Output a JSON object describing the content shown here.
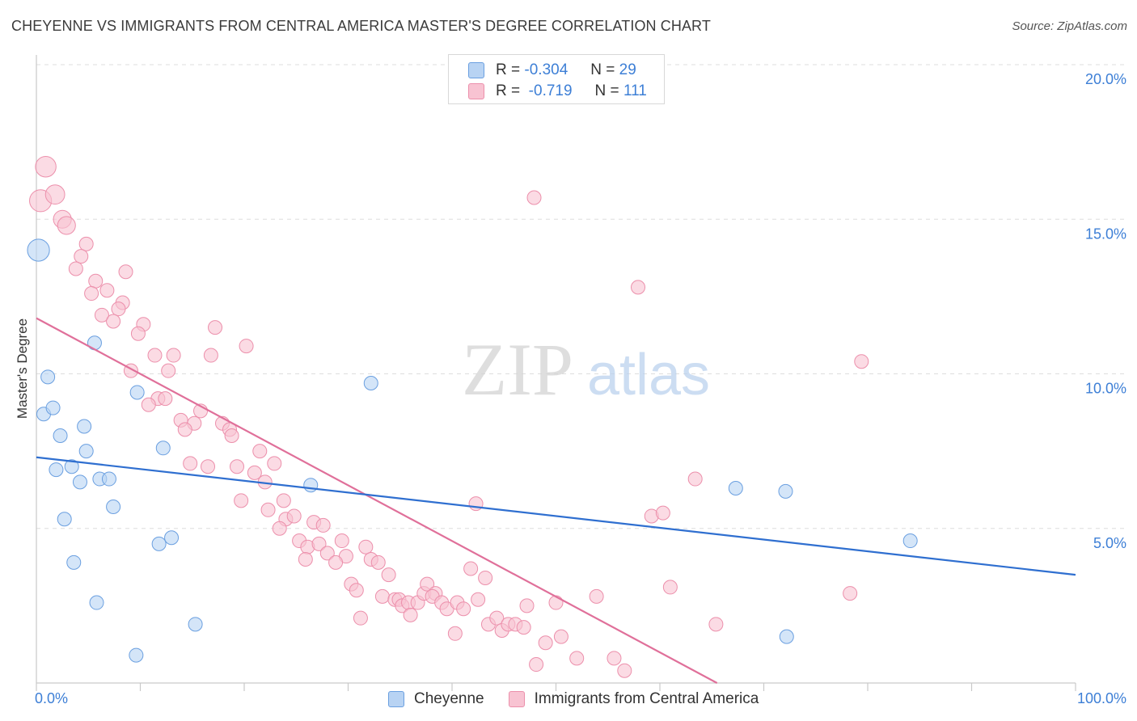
{
  "header": {
    "title": "CHEYENNE VS IMMIGRANTS FROM CENTRAL AMERICA MASTER'S DEGREE CORRELATION CHART",
    "source": "Source: ZipAtlas.com"
  },
  "watermark": {
    "zip": "ZIP",
    "atlas": "atlas"
  },
  "legend": {
    "rows": [
      {
        "r_label": "R =",
        "r_value": "-0.304",
        "n_label": "N =",
        "n_value": "29"
      },
      {
        "r_label": "R =",
        "r_value": "-0.719",
        "n_label": "N =",
        "n_value": "111"
      }
    ]
  },
  "bottom_legend": {
    "series1": "Cheyenne",
    "series2": "Immigrants from Central America"
  },
  "colors": {
    "blue_fill": "#b8d3f3",
    "blue_stroke": "#6a9fe0",
    "blue_line": "#2f6fd0",
    "pink_fill": "#f8c3d2",
    "pink_stroke": "#ec8fab",
    "pink_line": "#e0709a",
    "tick_text": "#3d7fd6",
    "grid": "#dddddd"
  },
  "chart_data": {
    "type": "scatter",
    "title": "CHEYENNE VS IMMIGRANTS FROM CENTRAL AMERICA MASTER'S DEGREE CORRELATION CHART",
    "xlabel": "",
    "ylabel": "Master's Degree",
    "xlim": [
      0,
      100
    ],
    "ylim": [
      0,
      20
    ],
    "x_tick_labels": [
      "0.0%",
      "100.0%"
    ],
    "y_ticks": [
      5,
      10,
      15,
      20
    ],
    "y_tick_labels": [
      "5.0%",
      "10.0%",
      "15.0%",
      "20.0%"
    ],
    "grid": true,
    "series": [
      {
        "name": "Cheyenne",
        "r": -0.304,
        "n": 29,
        "trend": {
          "x": [
            0,
            100
          ],
          "y": [
            7.3,
            3.5
          ]
        },
        "points": [
          {
            "x": 0.2,
            "y": 14.0,
            "s": 1.6
          },
          {
            "x": 0.7,
            "y": 8.7,
            "s": 1
          },
          {
            "x": 1.1,
            "y": 9.9,
            "s": 1
          },
          {
            "x": 1.6,
            "y": 8.9,
            "s": 1
          },
          {
            "x": 1.9,
            "y": 6.9,
            "s": 1
          },
          {
            "x": 2.3,
            "y": 8.0,
            "s": 1
          },
          {
            "x": 2.7,
            "y": 5.3,
            "s": 1
          },
          {
            "x": 3.4,
            "y": 7.0,
            "s": 1
          },
          {
            "x": 3.6,
            "y": 3.9,
            "s": 1
          },
          {
            "x": 4.2,
            "y": 6.5,
            "s": 1
          },
          {
            "x": 4.6,
            "y": 8.3,
            "s": 1
          },
          {
            "x": 4.8,
            "y": 7.5,
            "s": 1
          },
          {
            "x": 5.6,
            "y": 11.0,
            "s": 1
          },
          {
            "x": 5.8,
            "y": 2.6,
            "s": 1
          },
          {
            "x": 6.1,
            "y": 6.6,
            "s": 1
          },
          {
            "x": 7.0,
            "y": 6.6,
            "s": 1
          },
          {
            "x": 7.4,
            "y": 5.7,
            "s": 1
          },
          {
            "x": 9.6,
            "y": 0.9,
            "s": 1
          },
          {
            "x": 9.7,
            "y": 9.4,
            "s": 1
          },
          {
            "x": 11.8,
            "y": 4.5,
            "s": 1
          },
          {
            "x": 12.2,
            "y": 7.6,
            "s": 1
          },
          {
            "x": 13.0,
            "y": 4.7,
            "s": 1
          },
          {
            "x": 15.3,
            "y": 1.9,
            "s": 1
          },
          {
            "x": 26.4,
            "y": 6.4,
            "s": 1
          },
          {
            "x": 32.2,
            "y": 9.7,
            "s": 1
          },
          {
            "x": 67.3,
            "y": 6.3,
            "s": 1
          },
          {
            "x": 72.1,
            "y": 6.2,
            "s": 1
          },
          {
            "x": 84.1,
            "y": 4.6,
            "s": 1
          },
          {
            "x": 72.2,
            "y": 1.5,
            "s": 1
          }
        ]
      },
      {
        "name": "Immigrants from Central America",
        "r": -0.719,
        "n": 111,
        "trend": {
          "x": [
            0,
            65.5
          ],
          "y": [
            11.8,
            0
          ]
        },
        "points": [
          {
            "x": 0.4,
            "y": 15.6,
            "s": 1.6
          },
          {
            "x": 0.9,
            "y": 16.7,
            "s": 1.5
          },
          {
            "x": 1.8,
            "y": 15.8,
            "s": 1.4
          },
          {
            "x": 2.5,
            "y": 15.0,
            "s": 1.3
          },
          {
            "x": 2.9,
            "y": 14.8,
            "s": 1.3
          },
          {
            "x": 4.8,
            "y": 14.2,
            "s": 1
          },
          {
            "x": 4.3,
            "y": 13.8,
            "s": 1
          },
          {
            "x": 3.8,
            "y": 13.4,
            "s": 1
          },
          {
            "x": 5.7,
            "y": 13.0,
            "s": 1
          },
          {
            "x": 6.8,
            "y": 12.7,
            "s": 1
          },
          {
            "x": 5.3,
            "y": 12.6,
            "s": 1
          },
          {
            "x": 8.6,
            "y": 13.3,
            "s": 1
          },
          {
            "x": 8.3,
            "y": 12.3,
            "s": 1
          },
          {
            "x": 7.9,
            "y": 12.1,
            "s": 1
          },
          {
            "x": 6.3,
            "y": 11.9,
            "s": 1
          },
          {
            "x": 7.4,
            "y": 11.7,
            "s": 1
          },
          {
            "x": 10.3,
            "y": 11.6,
            "s": 1
          },
          {
            "x": 9.8,
            "y": 11.3,
            "s": 1
          },
          {
            "x": 17.2,
            "y": 11.5,
            "s": 1
          },
          {
            "x": 20.2,
            "y": 10.9,
            "s": 1
          },
          {
            "x": 11.4,
            "y": 10.6,
            "s": 1
          },
          {
            "x": 13.2,
            "y": 10.6,
            "s": 1
          },
          {
            "x": 16.8,
            "y": 10.6,
            "s": 1
          },
          {
            "x": 9.1,
            "y": 10.1,
            "s": 1
          },
          {
            "x": 12.7,
            "y": 10.1,
            "s": 1
          },
          {
            "x": 11.7,
            "y": 9.2,
            "s": 1
          },
          {
            "x": 12.4,
            "y": 9.2,
            "s": 1
          },
          {
            "x": 10.8,
            "y": 9.0,
            "s": 1
          },
          {
            "x": 15.8,
            "y": 8.8,
            "s": 1
          },
          {
            "x": 13.9,
            "y": 8.5,
            "s": 1
          },
          {
            "x": 15.2,
            "y": 8.4,
            "s": 1
          },
          {
            "x": 14.3,
            "y": 8.2,
            "s": 1
          },
          {
            "x": 17.9,
            "y": 8.4,
            "s": 1
          },
          {
            "x": 18.6,
            "y": 8.2,
            "s": 1
          },
          {
            "x": 18.8,
            "y": 8.0,
            "s": 1
          },
          {
            "x": 21.5,
            "y": 7.5,
            "s": 1
          },
          {
            "x": 14.8,
            "y": 7.1,
            "s": 1
          },
          {
            "x": 16.5,
            "y": 7.0,
            "s": 1
          },
          {
            "x": 19.3,
            "y": 7.0,
            "s": 1
          },
          {
            "x": 21.0,
            "y": 6.8,
            "s": 1
          },
          {
            "x": 22.9,
            "y": 7.1,
            "s": 1
          },
          {
            "x": 22.0,
            "y": 6.5,
            "s": 1
          },
          {
            "x": 19.7,
            "y": 5.9,
            "s": 1
          },
          {
            "x": 22.3,
            "y": 5.6,
            "s": 1
          },
          {
            "x": 23.8,
            "y": 5.9,
            "s": 1
          },
          {
            "x": 24.0,
            "y": 5.3,
            "s": 1
          },
          {
            "x": 24.8,
            "y": 5.4,
            "s": 1
          },
          {
            "x": 23.4,
            "y": 5.0,
            "s": 1
          },
          {
            "x": 26.7,
            "y": 5.2,
            "s": 1
          },
          {
            "x": 27.6,
            "y": 5.1,
            "s": 1
          },
          {
            "x": 25.3,
            "y": 4.6,
            "s": 1
          },
          {
            "x": 26.1,
            "y": 4.4,
            "s": 1
          },
          {
            "x": 27.2,
            "y": 4.5,
            "s": 1
          },
          {
            "x": 29.4,
            "y": 4.6,
            "s": 1
          },
          {
            "x": 31.7,
            "y": 4.4,
            "s": 1
          },
          {
            "x": 25.9,
            "y": 4.0,
            "s": 1
          },
          {
            "x": 28.0,
            "y": 4.2,
            "s": 1
          },
          {
            "x": 29.8,
            "y": 4.1,
            "s": 1
          },
          {
            "x": 28.8,
            "y": 3.9,
            "s": 1
          },
          {
            "x": 32.2,
            "y": 4.0,
            "s": 1
          },
          {
            "x": 32.9,
            "y": 3.9,
            "s": 1
          },
          {
            "x": 30.3,
            "y": 3.2,
            "s": 1
          },
          {
            "x": 30.8,
            "y": 3.0,
            "s": 1
          },
          {
            "x": 33.9,
            "y": 3.5,
            "s": 1
          },
          {
            "x": 33.3,
            "y": 2.8,
            "s": 1
          },
          {
            "x": 34.5,
            "y": 2.7,
            "s": 1
          },
          {
            "x": 34.9,
            "y": 2.7,
            "s": 1
          },
          {
            "x": 35.2,
            "y": 2.5,
            "s": 1
          },
          {
            "x": 35.8,
            "y": 2.6,
            "s": 1
          },
          {
            "x": 36.7,
            "y": 2.6,
            "s": 1
          },
          {
            "x": 37.3,
            "y": 2.9,
            "s": 1
          },
          {
            "x": 37.6,
            "y": 3.2,
            "s": 1
          },
          {
            "x": 38.4,
            "y": 2.9,
            "s": 1
          },
          {
            "x": 38.1,
            "y": 2.8,
            "s": 1
          },
          {
            "x": 39.0,
            "y": 2.6,
            "s": 1
          },
          {
            "x": 39.5,
            "y": 2.4,
            "s": 1
          },
          {
            "x": 40.5,
            "y": 2.6,
            "s": 1
          },
          {
            "x": 41.1,
            "y": 2.4,
            "s": 1
          },
          {
            "x": 41.8,
            "y": 3.7,
            "s": 1
          },
          {
            "x": 42.5,
            "y": 2.7,
            "s": 1
          },
          {
            "x": 43.2,
            "y": 3.4,
            "s": 1
          },
          {
            "x": 36.0,
            "y": 2.2,
            "s": 1
          },
          {
            "x": 31.2,
            "y": 2.1,
            "s": 1
          },
          {
            "x": 43.5,
            "y": 1.9,
            "s": 1
          },
          {
            "x": 44.3,
            "y": 2.1,
            "s": 1
          },
          {
            "x": 44.8,
            "y": 1.7,
            "s": 1
          },
          {
            "x": 45.4,
            "y": 1.9,
            "s": 1
          },
          {
            "x": 46.1,
            "y": 1.9,
            "s": 1
          },
          {
            "x": 46.9,
            "y": 1.8,
            "s": 1
          },
          {
            "x": 47.2,
            "y": 2.5,
            "s": 1
          },
          {
            "x": 50.0,
            "y": 2.6,
            "s": 1
          },
          {
            "x": 40.3,
            "y": 1.6,
            "s": 1
          },
          {
            "x": 49.0,
            "y": 1.3,
            "s": 1
          },
          {
            "x": 50.5,
            "y": 1.5,
            "s": 1
          },
          {
            "x": 53.9,
            "y": 2.8,
            "s": 1
          },
          {
            "x": 48.1,
            "y": 0.6,
            "s": 1
          },
          {
            "x": 52.0,
            "y": 0.8,
            "s": 1
          },
          {
            "x": 55.6,
            "y": 0.8,
            "s": 1
          },
          {
            "x": 56.6,
            "y": 0.4,
            "s": 1
          },
          {
            "x": 42.3,
            "y": 5.8,
            "s": 1
          },
          {
            "x": 59.2,
            "y": 5.4,
            "s": 1
          },
          {
            "x": 61.0,
            "y": 3.1,
            "s": 1
          },
          {
            "x": 60.3,
            "y": 5.5,
            "s": 1
          },
          {
            "x": 63.4,
            "y": 6.6,
            "s": 1
          },
          {
            "x": 65.4,
            "y": 1.9,
            "s": 1
          },
          {
            "x": 78.3,
            "y": 2.9,
            "s": 1
          },
          {
            "x": 79.4,
            "y": 10.4,
            "s": 1
          },
          {
            "x": 57.9,
            "y": 12.8,
            "s": 1
          },
          {
            "x": 47.9,
            "y": 15.7,
            "s": 1
          }
        ]
      }
    ]
  }
}
